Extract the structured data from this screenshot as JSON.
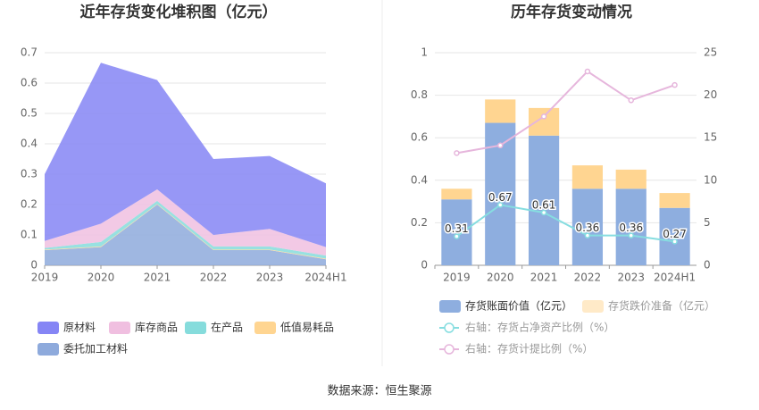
{
  "chart_data": [
    {
      "type": "area",
      "title": "近年存货变化堆积图（亿元）",
      "categories": [
        "2019",
        "2020",
        "2021",
        "2022",
        "2023",
        "2024H1"
      ],
      "series": [
        {
          "name": "原材料",
          "color": "#8585f5",
          "values": [
            0.22,
            0.53,
            0.36,
            0.25,
            0.24,
            0.21
          ]
        },
        {
          "name": "库存商品",
          "color": "#f0bfe0",
          "values": [
            0.023,
            0.06,
            0.038,
            0.038,
            0.058,
            0.028
          ]
        },
        {
          "name": "在产品",
          "color": "#86dcdc",
          "values": [
            0.005,
            0.015,
            0.01,
            0.01,
            0.01,
            0.01
          ]
        },
        {
          "name": "低值易耗品",
          "color": "#ffd591",
          "values": [
            0.002,
            0.002,
            0.002,
            0.002,
            0.002,
            0.002
          ]
        },
        {
          "name": "委托加工材料",
          "color": "#8eaadc",
          "values": [
            0.05,
            0.06,
            0.2,
            0.05,
            0.05,
            0.02
          ]
        }
      ],
      "ylim": [
        0,
        0.7
      ],
      "yticks": [
        0,
        0.1,
        0.2,
        0.3,
        0.4,
        0.5,
        0.6,
        0.7
      ],
      "grid": true,
      "stacked": true
    },
    {
      "type": "bar",
      "title": "历年存货变动情况",
      "categories": [
        "2019",
        "2020",
        "2021",
        "2022",
        "2023",
        "2024H1"
      ],
      "series": [
        {
          "name": "存货账面价值（亿元）",
          "color": "#8eaedf",
          "values": [
            0.31,
            0.67,
            0.61,
            0.36,
            0.36,
            0.27
          ],
          "data_labels": true
        },
        {
          "name": "存货跌价准备（亿元）",
          "color": "#ffd591",
          "values": [
            0.05,
            0.11,
            0.13,
            0.11,
            0.09,
            0.07
          ]
        },
        {
          "name": "右轴：存货占净资产比例（%）",
          "color": "#86dde0",
          "axis": "y2",
          "values": [
            3.4,
            7.1,
            6.2,
            3.5,
            3.5,
            2.8
          ]
        },
        {
          "name": "右轴：存货计提比例（%）",
          "color": "#e6b6dc",
          "axis": "y2",
          "values": [
            13.2,
            14.1,
            17.5,
            22.8,
            19.4,
            21.2
          ]
        }
      ],
      "ylim": [
        0,
        1
      ],
      "yticks": [
        0,
        0.2,
        0.4,
        0.6,
        0.8,
        1
      ],
      "y2lim": [
        0,
        25
      ],
      "y2ticks": [
        0,
        5,
        10,
        15,
        20,
        25
      ],
      "grid": true,
      "stacked": true
    }
  ],
  "source": "数据来源：恒生聚源"
}
